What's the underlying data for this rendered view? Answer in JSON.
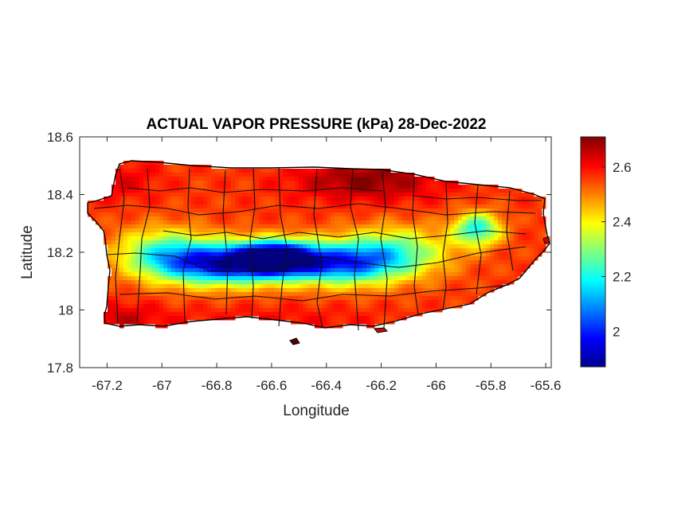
{
  "chart_data": {
    "type": "heatmap",
    "title": "ACTUAL VAPOR PRESSURE (kPa) 28-Dec-2022",
    "xlabel": "Longitude",
    "ylabel": "Latitude",
    "xlim": [
      -67.3,
      -65.58
    ],
    "ylim": [
      17.8,
      18.6
    ],
    "xticks": [
      -67.2,
      -67,
      -66.8,
      -66.6,
      -66.4,
      -66.2,
      -66,
      -65.8,
      -65.6
    ],
    "xtick_labels": [
      "-67.2",
      "-67",
      "-66.8",
      "-66.6",
      "-66.4",
      "-66.2",
      "-66",
      "-65.8",
      "-65.6"
    ],
    "yticks": [
      17.8,
      18,
      18.2,
      18.4,
      18.6
    ],
    "ytick_labels": [
      "17.8",
      "18",
      "18.2",
      "18.4",
      "18.6"
    ],
    "colorbar": {
      "colormap": "jet",
      "range": [
        1.87,
        2.71
      ],
      "ticks": [
        2,
        2.2,
        2.4,
        2.6
      ],
      "tick_labels": [
        "2",
        "2.2",
        "2.4",
        "2.6"
      ]
    },
    "value_field": {
      "description_units": "kPa",
      "base_value": 2.56,
      "features": [
        {
          "lon": -66.78,
          "lat": 18.16,
          "value": 1.98,
          "slon": 0.16,
          "slat": 0.05
        },
        {
          "lon": -66.58,
          "lat": 18.18,
          "value": 1.9,
          "slon": 0.1,
          "slat": 0.04
        },
        {
          "lon": -66.35,
          "lat": 18.16,
          "value": 2.1,
          "slon": 0.14,
          "slat": 0.05
        },
        {
          "lon": -66.15,
          "lat": 18.2,
          "value": 2.28,
          "slon": 0.14,
          "slat": 0.06
        },
        {
          "lon": -67.0,
          "lat": 18.2,
          "value": 2.3,
          "slon": 0.12,
          "slat": 0.06
        },
        {
          "lon": -65.85,
          "lat": 18.28,
          "value": 2.2,
          "slon": 0.06,
          "slat": 0.04
        },
        {
          "lon": -66.25,
          "lat": 18.45,
          "value": 2.7,
          "slon": 0.18,
          "slat": 0.05
        },
        {
          "lon": -67.15,
          "lat": 18.45,
          "value": 2.62,
          "slon": 0.1,
          "slat": 0.05
        },
        {
          "lon": -66.6,
          "lat": 17.96,
          "value": 2.6,
          "slon": 0.3,
          "slat": 0.04
        },
        {
          "lon": -67.15,
          "lat": 17.97,
          "value": 2.64,
          "slon": 0.1,
          "slat": 0.04
        }
      ]
    },
    "grid": false,
    "box": true
  }
}
